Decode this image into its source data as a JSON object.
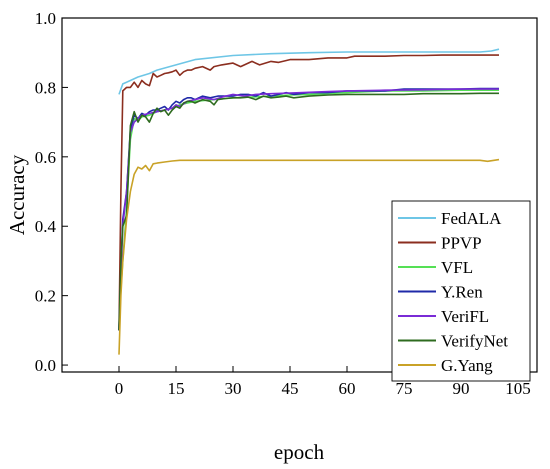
{
  "chart_data": {
    "type": "line",
    "xlabel": "epoch",
    "ylabel": "Accuracy",
    "xlim": [
      -15,
      110
    ],
    "ylim": [
      -0.02,
      1.0
    ],
    "xticks": [
      0,
      15,
      30,
      45,
      60,
      75,
      90,
      105
    ],
    "yticks": [
      0.0,
      0.2,
      0.4,
      0.6,
      0.8,
      1.0
    ],
    "xtick_labels": [
      "0",
      "15",
      "30",
      "45",
      "60",
      "75",
      "90",
      "105"
    ],
    "ytick_labels": [
      "0.0",
      "0.2",
      "0.4",
      "0.6",
      "0.8",
      "1.0"
    ],
    "grid": false,
    "legend_position": "bottom-right",
    "series": [
      {
        "name": "FedALA",
        "color": "#6ec6e6",
        "x": [
          0,
          1,
          3,
          5,
          8,
          10,
          15,
          20,
          30,
          40,
          50,
          60,
          70,
          80,
          90,
          95,
          98,
          100
        ],
        "y": [
          0.78,
          0.81,
          0.82,
          0.83,
          0.84,
          0.85,
          0.865,
          0.88,
          0.892,
          0.897,
          0.9,
          0.902,
          0.902,
          0.902,
          0.902,
          0.902,
          0.905,
          0.91
        ]
      },
      {
        "name": "PPVP",
        "color": "#8b2e1f",
        "x": [
          0,
          0.5,
          1,
          2,
          3,
          4,
          5,
          6,
          7,
          8,
          9,
          10,
          11,
          12,
          13,
          14,
          15,
          16,
          17,
          18,
          19,
          20,
          22,
          24,
          25,
          27,
          30,
          32,
          35,
          37,
          40,
          42,
          45,
          50,
          55,
          60,
          62,
          65,
          70,
          75,
          80,
          85,
          90,
          95,
          100
        ],
        "y": [
          0.1,
          0.5,
          0.79,
          0.8,
          0.8,
          0.815,
          0.8,
          0.82,
          0.81,
          0.805,
          0.84,
          0.83,
          0.835,
          0.84,
          0.842,
          0.845,
          0.85,
          0.835,
          0.845,
          0.85,
          0.85,
          0.855,
          0.86,
          0.85,
          0.86,
          0.865,
          0.87,
          0.86,
          0.875,
          0.865,
          0.875,
          0.872,
          0.88,
          0.88,
          0.885,
          0.885,
          0.89,
          0.89,
          0.89,
          0.892,
          0.892,
          0.893,
          0.893,
          0.893,
          0.893
        ]
      },
      {
        "name": "VFL",
        "color": "#55e055",
        "x": [
          0,
          0.5,
          1,
          2,
          3,
          4,
          5,
          6,
          8,
          10,
          12,
          14,
          16,
          18,
          20,
          25,
          30,
          35,
          40,
          45,
          50,
          60,
          70,
          80,
          90,
          100
        ],
        "y": [
          0.1,
          0.22,
          0.3,
          0.45,
          0.65,
          0.71,
          0.705,
          0.715,
          0.72,
          0.73,
          0.735,
          0.74,
          0.75,
          0.755,
          0.76,
          0.765,
          0.77,
          0.772,
          0.775,
          0.778,
          0.78,
          0.785,
          0.79,
          0.79,
          0.792,
          0.792
        ]
      },
      {
        "name": "Y.Ren",
        "color": "#1f2aa8",
        "x": [
          0,
          0.5,
          1,
          2,
          3,
          4,
          5,
          6,
          7,
          8,
          9,
          10,
          11,
          12,
          13,
          14,
          15,
          16,
          17,
          18,
          19,
          20,
          22,
          24,
          26,
          28,
          30,
          32,
          34,
          36,
          38,
          40,
          42,
          44,
          46,
          50,
          55,
          60,
          65,
          70,
          75,
          80,
          85,
          90,
          95,
          100
        ],
        "y": [
          0.1,
          0.28,
          0.42,
          0.5,
          0.68,
          0.72,
          0.71,
          0.725,
          0.72,
          0.73,
          0.735,
          0.735,
          0.74,
          0.745,
          0.735,
          0.75,
          0.76,
          0.755,
          0.765,
          0.77,
          0.77,
          0.765,
          0.775,
          0.77,
          0.775,
          0.775,
          0.775,
          0.78,
          0.78,
          0.775,
          0.785,
          0.775,
          0.78,
          0.785,
          0.78,
          0.785,
          0.785,
          0.79,
          0.79,
          0.79,
          0.795,
          0.795,
          0.795,
          0.795,
          0.797,
          0.797
        ]
      },
      {
        "name": "VeriFL",
        "color": "#7a2bd6",
        "x": [
          0,
          0.5,
          1,
          2,
          3,
          4,
          5,
          6,
          8,
          10,
          12,
          14,
          15,
          16,
          18,
          20,
          22,
          25,
          28,
          30,
          33,
          36,
          40,
          45,
          50,
          55,
          60,
          70,
          80,
          90,
          100
        ],
        "y": [
          0.1,
          0.25,
          0.4,
          0.5,
          0.67,
          0.7,
          0.71,
          0.72,
          0.725,
          0.73,
          0.735,
          0.74,
          0.75,
          0.745,
          0.76,
          0.765,
          0.77,
          0.765,
          0.775,
          0.78,
          0.775,
          0.78,
          0.782,
          0.784,
          0.786,
          0.788,
          0.79,
          0.792,
          0.793,
          0.795,
          0.795
        ]
      },
      {
        "name": "VerifyNet",
        "color": "#2e6b1f",
        "x": [
          0,
          0.5,
          1,
          2,
          3,
          4,
          5,
          6,
          7,
          8,
          9,
          10,
          11,
          12,
          13,
          14,
          15,
          16,
          17,
          18,
          19,
          20,
          22,
          24,
          25,
          26,
          28,
          30,
          32,
          34,
          36,
          38,
          40,
          42,
          44,
          46,
          50,
          55,
          60,
          65,
          70,
          75,
          80,
          85,
          90,
          95,
          100
        ],
        "y": [
          0.1,
          0.3,
          0.4,
          0.43,
          0.69,
          0.73,
          0.7,
          0.72,
          0.715,
          0.7,
          0.725,
          0.74,
          0.73,
          0.735,
          0.72,
          0.735,
          0.745,
          0.74,
          0.755,
          0.76,
          0.76,
          0.755,
          0.765,
          0.76,
          0.75,
          0.765,
          0.768,
          0.77,
          0.77,
          0.772,
          0.765,
          0.775,
          0.77,
          0.772,
          0.775,
          0.77,
          0.775,
          0.778,
          0.78,
          0.78,
          0.78,
          0.78,
          0.782,
          0.782,
          0.782,
          0.783,
          0.783
        ]
      },
      {
        "name": "G.Yang",
        "color": "#c9a227",
        "x": [
          0,
          0.5,
          1,
          2,
          3,
          4,
          5,
          6,
          7,
          8,
          9,
          10,
          12,
          14,
          16,
          18,
          20,
          30,
          40,
          50,
          60,
          70,
          80,
          90,
          95,
          97,
          100
        ],
        "y": [
          0.03,
          0.2,
          0.3,
          0.42,
          0.5,
          0.55,
          0.57,
          0.565,
          0.575,
          0.56,
          0.58,
          0.582,
          0.585,
          0.588,
          0.59,
          0.59,
          0.59,
          0.59,
          0.59,
          0.59,
          0.59,
          0.59,
          0.59,
          0.59,
          0.59,
          0.587,
          0.592
        ]
      }
    ]
  }
}
